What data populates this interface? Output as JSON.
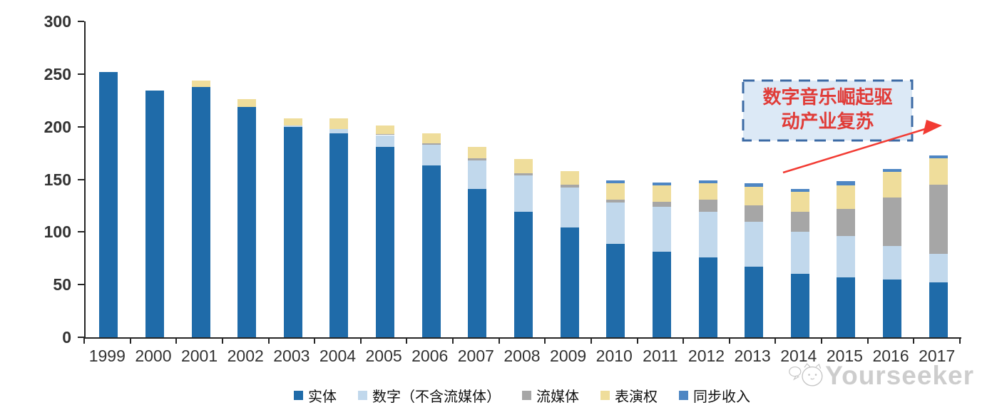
{
  "chart_data": {
    "type": "bar",
    "stacked": true,
    "title": "",
    "categories": [
      "1999",
      "2000",
      "2001",
      "2002",
      "2003",
      "2004",
      "2005",
      "2006",
      "2007",
      "2008",
      "2009",
      "2010",
      "2011",
      "2012",
      "2013",
      "2014",
      "2015",
      "2016",
      "2017"
    ],
    "series": [
      {
        "name": "实体",
        "color": "#1F6BA9",
        "values": [
          252,
          234,
          238,
          219,
          200,
          194,
          181,
          163,
          141,
          119,
          104,
          89,
          81,
          76,
          67,
          60,
          57,
          55,
          52
        ]
      },
      {
        "name": "数字（不含流媒体）",
        "color": "#C1D8EC",
        "values": [
          0,
          0,
          0,
          0,
          1,
          4,
          11,
          20,
          27,
          35,
          38,
          39,
          43,
          43,
          43,
          40,
          39,
          32,
          27
        ]
      },
      {
        "name": "流媒体",
        "color": "#A6A6A6",
        "values": [
          0,
          0,
          0,
          0,
          0,
          0,
          1,
          1,
          2,
          2,
          3,
          3,
          5,
          12,
          15,
          19,
          26,
          46,
          66
        ]
      },
      {
        "name": "表演权",
        "color": "#EFDD9B",
        "values": [
          0,
          0,
          6,
          7,
          7,
          10,
          8,
          10,
          11,
          13,
          13,
          15,
          15,
          15,
          18,
          19,
          22,
          24,
          25
        ]
      },
      {
        "name": "同步收入",
        "color": "#4E86C3",
        "values": [
          0,
          0,
          0,
          0,
          0,
          0,
          0,
          0,
          0,
          0,
          0,
          3,
          3,
          3,
          3,
          3,
          4,
          3,
          3
        ]
      }
    ],
    "ylim": [
      0,
      300
    ],
    "yticks": [
      0,
      50,
      100,
      150,
      200,
      250,
      300
    ],
    "xlabel": "",
    "ylabel": "",
    "grid": false,
    "legend_position": "bottom"
  },
  "annotation": {
    "lines": [
      "数字音乐崛起驱",
      "动产业复苏"
    ],
    "text": "数字音乐崛起驱动产业复苏",
    "text_color": "#E03C38",
    "box_fill": "#DCE9F6",
    "box_border": "#3D6BA5",
    "arrow_color": "#F23B33"
  },
  "watermark": {
    "text": "Yourseeker",
    "color": "#C9C9C9"
  }
}
